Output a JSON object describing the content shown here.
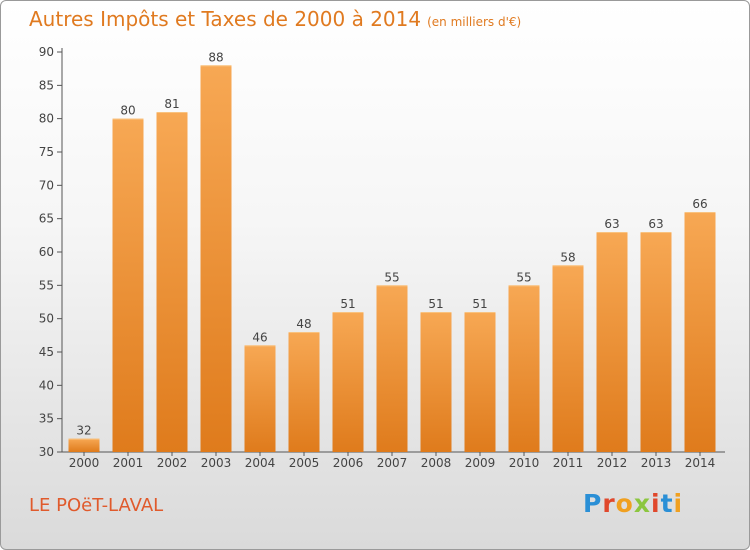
{
  "title": "Autres Impôts et Taxes de 2000 à 2014",
  "unit": "(en milliers d'€)",
  "location": "LE POëT-LAVAL",
  "logo": "Proxiti",
  "colors": {
    "title": "#e07a20",
    "bar_light": "#f6a650",
    "bar_dark": "#e07d1e",
    "location": "#e05a2c"
  },
  "chart_data": {
    "type": "bar",
    "categories": [
      "2000",
      "2001",
      "2002",
      "2003",
      "2004",
      "2005",
      "2006",
      "2007",
      "2008",
      "2009",
      "2010",
      "2011",
      "2012",
      "2013",
      "2014"
    ],
    "values": [
      32,
      80,
      81,
      88,
      46,
      48,
      51,
      55,
      51,
      51,
      55,
      58,
      63,
      63,
      66
    ],
    "ylim": [
      30,
      90
    ],
    "yticks": [
      30,
      35,
      40,
      45,
      50,
      55,
      60,
      65,
      70,
      75,
      80,
      85,
      90
    ],
    "grid": false,
    "data_labels": true
  }
}
